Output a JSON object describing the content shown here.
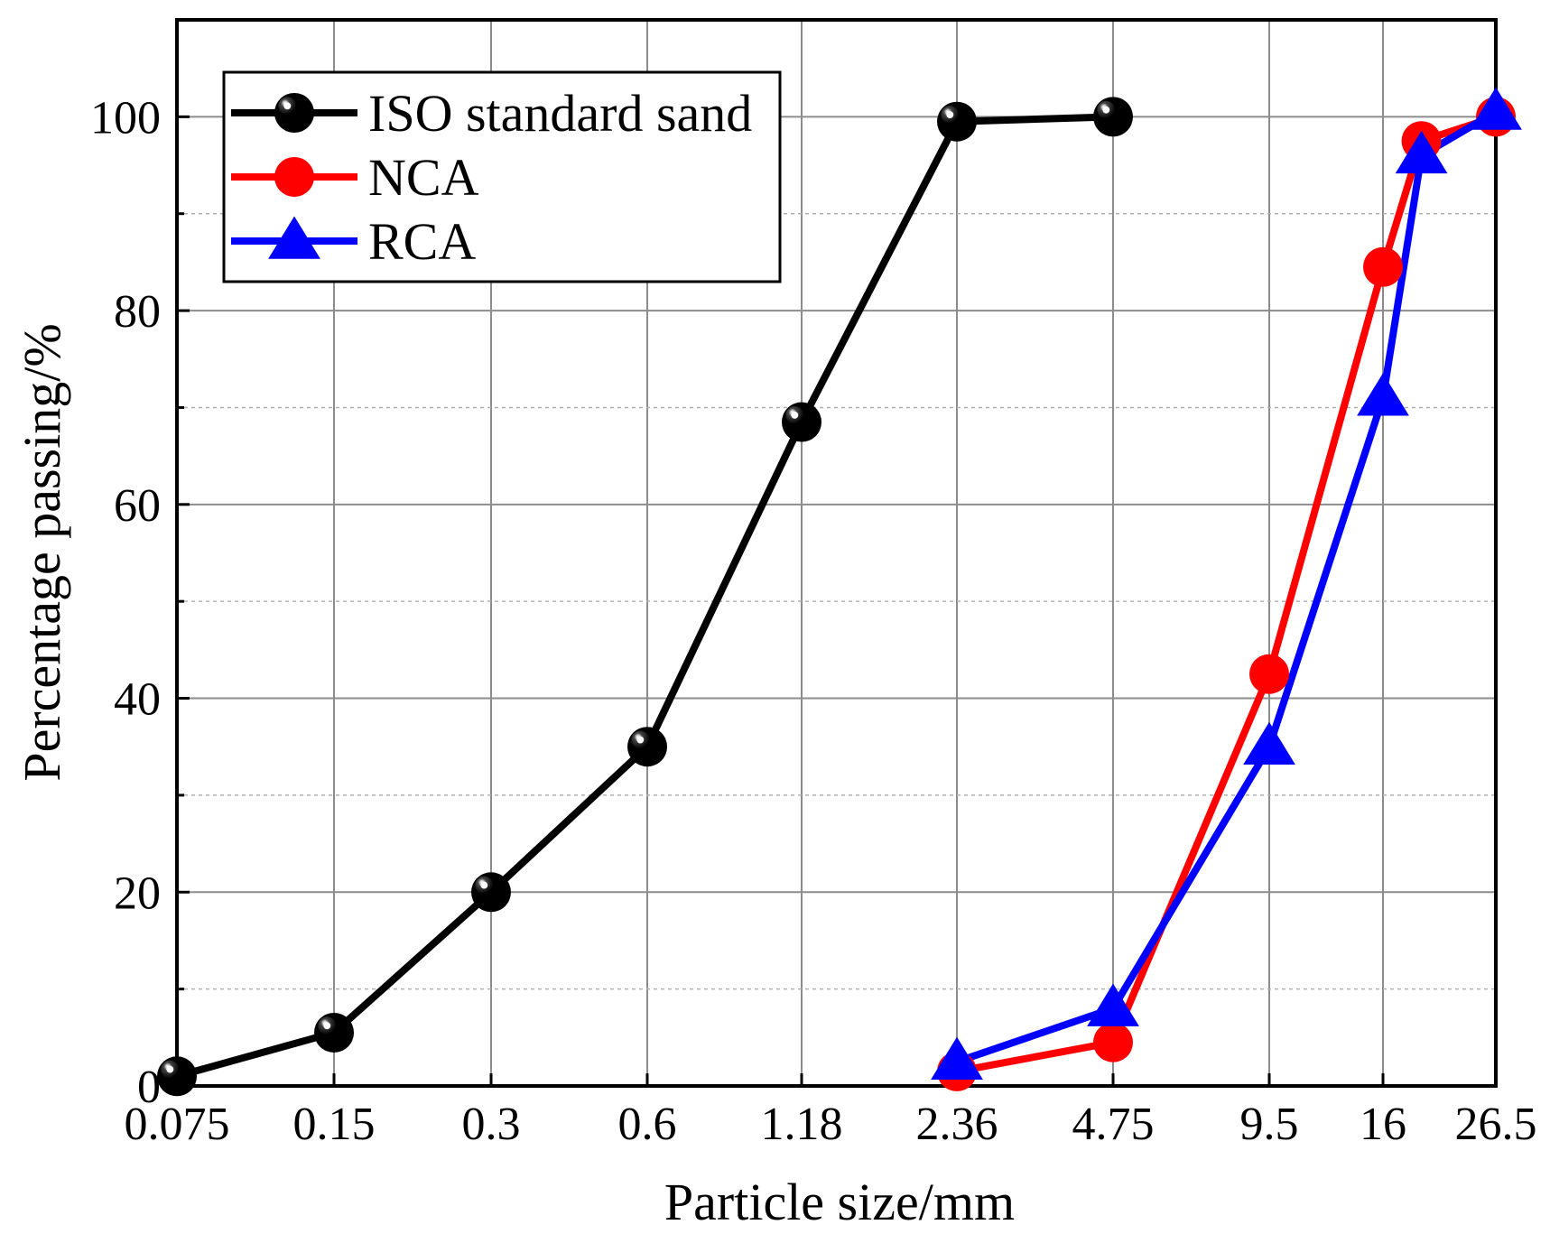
{
  "chart_data": {
    "type": "line",
    "title": "",
    "xlabel": "Particle size/mm",
    "ylabel": "Percentage passing/%",
    "x_scale": "categorical-log",
    "x_ticks": [
      "0.075",
      "0.15",
      "0.3",
      "0.6",
      "1.18",
      "2.36",
      "4.75",
      "9.5",
      "16",
      "26.5"
    ],
    "ylim": [
      0,
      110
    ],
    "y_ticks": [
      0,
      20,
      40,
      60,
      80,
      100
    ],
    "y_minor_grid": [
      10,
      30,
      50,
      70,
      90
    ],
    "grid": true,
    "legend_position": "top-left",
    "series": [
      {
        "name": "ISO standard sand",
        "color": "#000000",
        "marker": "circle-sphere",
        "x": [
          0.075,
          0.15,
          0.3,
          0.6,
          1.18,
          2.36,
          4.75
        ],
        "values": [
          1,
          5.5,
          20,
          35,
          68.5,
          99.5,
          100
        ]
      },
      {
        "name": "NCA",
        "color": "#ff0000",
        "marker": "circle",
        "x": [
          2.36,
          4.75,
          9.5,
          16,
          19,
          26.5
        ],
        "values": [
          1.5,
          4.5,
          42.5,
          84.5,
          97.5,
          100
        ]
      },
      {
        "name": "RCA",
        "color": "#0000ff",
        "marker": "triangle",
        "x": [
          2.36,
          4.75,
          9.5,
          16,
          19,
          26.5
        ],
        "values": [
          2.5,
          8,
          35,
          71,
          96,
          100.5
        ]
      }
    ]
  }
}
